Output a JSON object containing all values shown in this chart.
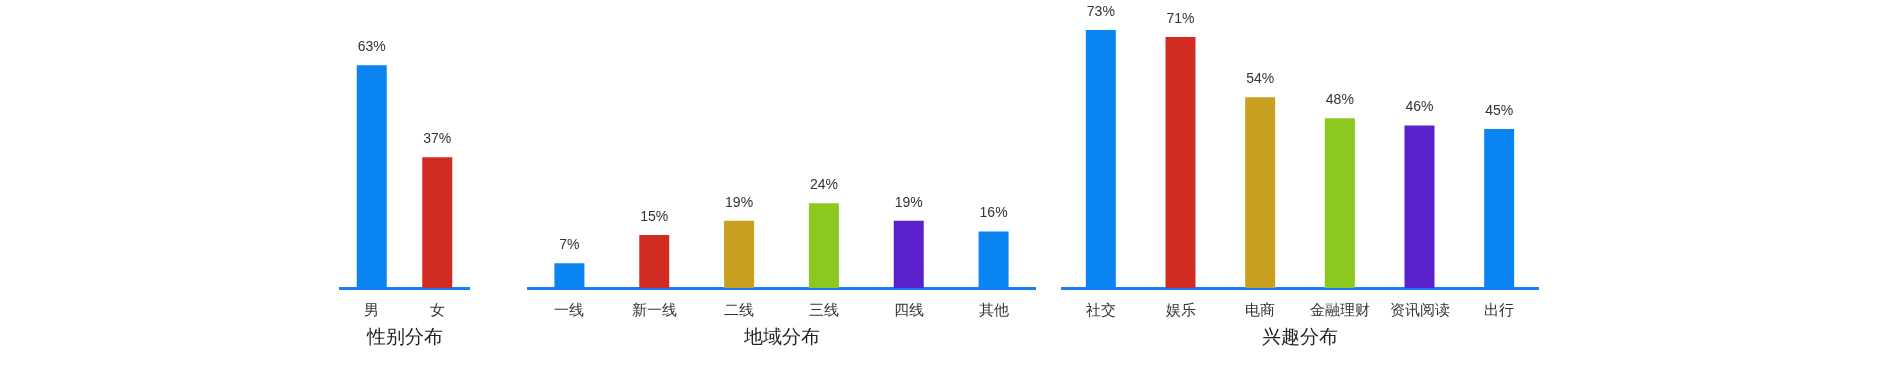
{
  "chart_data": [
    {
      "type": "bar",
      "title": "性别分布",
      "categories": [
        "男",
        "女"
      ],
      "values": [
        63,
        37
      ],
      "colors": [
        "#0a84f0",
        "#d22b22"
      ],
      "value_labels": [
        "63%",
        "37%"
      ]
    },
    {
      "type": "bar",
      "title": "地域分布",
      "categories": [
        "一线",
        "新一线",
        "二线",
        "三线",
        "四线",
        "其他"
      ],
      "values": [
        7,
        15,
        19,
        24,
        19,
        16
      ],
      "colors": [
        "#0a84f0",
        "#d22b22",
        "#caa020",
        "#8cc820",
        "#5a20cc",
        "#0a84f0"
      ],
      "value_labels": [
        "7%",
        "15%",
        "19%",
        "24%",
        "19%",
        "16%"
      ]
    },
    {
      "type": "bar",
      "title": "兴趣分布",
      "categories": [
        "社交",
        "娱乐",
        "电商",
        "金融理财",
        "资讯阅读",
        "出行"
      ],
      "values": [
        73,
        71,
        54,
        48,
        46,
        45
      ],
      "colors": [
        "#0a84f0",
        "#d22b22",
        "#caa020",
        "#8cc820",
        "#5a20cc",
        "#0a84f0"
      ],
      "value_labels": [
        "73%",
        "71%",
        "54%",
        "48%",
        "46%",
        "45%"
      ]
    }
  ]
}
